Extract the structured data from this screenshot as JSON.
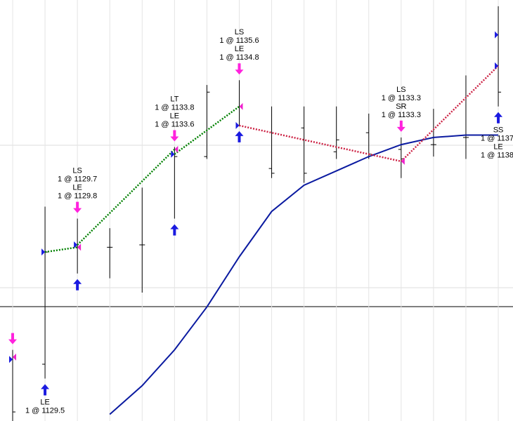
{
  "chart_data": {
    "type": "ohlc",
    "categories": [
      null,
      null,
      null,
      null,
      null,
      null,
      null,
      null,
      null,
      null,
      null,
      null,
      null,
      null,
      null,
      null
    ],
    "ylim": [
      1122.42,
      1140.06
    ],
    "ohlc": {
      "open": [
        1125.0,
        1124.8,
        1129.8,
        1129.7,
        1129.8,
        1133.6,
        1133.5,
        1134.8,
        1133.0,
        1134.7,
        1133.7,
        1134.5,
        1133.8,
        1134.0,
        1134.3,
        1138.6
      ],
      "high": [
        1125.4,
        1131.4,
        1130.9,
        1130.5,
        1132.2,
        1133.9,
        1136.5,
        1136.7,
        1135.6,
        1135.6,
        1135.6,
        1135.3,
        1134.3,
        1135.5,
        1136.9,
        1139.8
      ],
      "low": [
        1122.4,
        1124.2,
        1128.6,
        1128.4,
        1127.8,
        1130.9,
        1133.4,
        1134.8,
        1132.6,
        1132.4,
        1133.4,
        1133.4,
        1132.6,
        1133.5,
        1133.4,
        1135.6
      ],
      "close": [
        1122.8,
        1129.5,
        1129.7,
        1129.7,
        1129.8,
        1133.5,
        1136.2,
        1135.6,
        1132.8,
        1132.8,
        1134.2,
        1133.6,
        1133.4,
        1134.0,
        1134.3,
        1136.2
      ],
      "color": "#000000"
    },
    "series": [
      {
        "color": "#0a1aa0",
        "values": [
          null,
          null,
          null,
          1122.7,
          1123.9,
          1125.4,
          1127.2,
          1129.3,
          1131.2,
          1132.3,
          1132.9,
          1133.5,
          1134.0,
          1134.3,
          1134.4,
          1134.4
        ]
      }
    ],
    "fills": [
      {
        "bar": 0,
        "price": 1125.0,
        "side": "entry"
      },
      {
        "bar": 0,
        "price": 1125.1,
        "side": "exit"
      },
      {
        "bar": 1,
        "price": 1129.5,
        "side": "entry"
      },
      {
        "bar": 2,
        "price": 1129.8,
        "side": "entry"
      },
      {
        "bar": 2,
        "price": 1129.7,
        "side": "exit"
      },
      {
        "bar": 5,
        "price": 1133.6,
        "side": "entry"
      },
      {
        "bar": 5,
        "price": 1133.8,
        "side": "exit"
      },
      {
        "bar": 7,
        "price": 1134.8,
        "side": "entry"
      },
      {
        "bar": 7,
        "price": 1135.6,
        "side": "exit"
      },
      {
        "bar": 12,
        "price": 1133.3,
        "side": "exit"
      },
      {
        "bar": 15,
        "price": 1138.6,
        "side": "entry"
      },
      {
        "bar": 15,
        "price": 1137.3,
        "side": "entry"
      }
    ],
    "trades": [
      {
        "color": "#008000",
        "bars": [
          1,
          2
        ],
        "prices": [
          1129.5,
          1129.7
        ]
      },
      {
        "color": "#008000",
        "bars": [
          2,
          5
        ],
        "prices": [
          1129.8,
          1133.8
        ]
      },
      {
        "color": "#008000",
        "bars": [
          5,
          7
        ],
        "prices": [
          1133.6,
          1135.6
        ]
      },
      {
        "color": "#cc2244",
        "bars": [
          7,
          12
        ],
        "prices": [
          1134.8,
          1133.3
        ]
      },
      {
        "color": "#cc2244",
        "bars": [
          12,
          15
        ],
        "prices": [
          1133.3,
          1137.3
        ]
      }
    ],
    "signals": [
      {
        "bar": 0,
        "arrows": [
          "down"
        ]
      },
      {
        "bar": 1,
        "position": "below",
        "labels": [
          "LE",
          "1 @ 1129.5"
        ],
        "arrows": [
          "up"
        ]
      },
      {
        "bar": 2,
        "position": "above",
        "labels": [
          "LS",
          "1 @ 1129.7",
          "LE",
          "1 @ 1129.8"
        ],
        "arrows": [
          "down",
          "up"
        ]
      },
      {
        "bar": 5,
        "position": "above",
        "labels": [
          "LT",
          "1 @ 1133.8",
          "LE",
          "1 @ 1133.6"
        ],
        "arrows": [
          "down",
          "up"
        ]
      },
      {
        "bar": 7,
        "position": "above",
        "labels": [
          "LS",
          "1 @ 1135.6",
          "LE",
          "1 @ 1134.8"
        ],
        "arrows": [
          "down",
          "up"
        ]
      },
      {
        "bar": 12,
        "position": "above",
        "labels": [
          "LS",
          "1 @ 1133.3",
          "SR",
          "1 @ 1133.3"
        ],
        "arrows": [
          "down"
        ]
      },
      {
        "bar": 15,
        "position": "below",
        "labels": [
          "SS",
          "1 @ 1137.",
          "LE",
          "1 @ 1138."
        ],
        "arrows": [
          "up"
        ]
      }
    ]
  }
}
